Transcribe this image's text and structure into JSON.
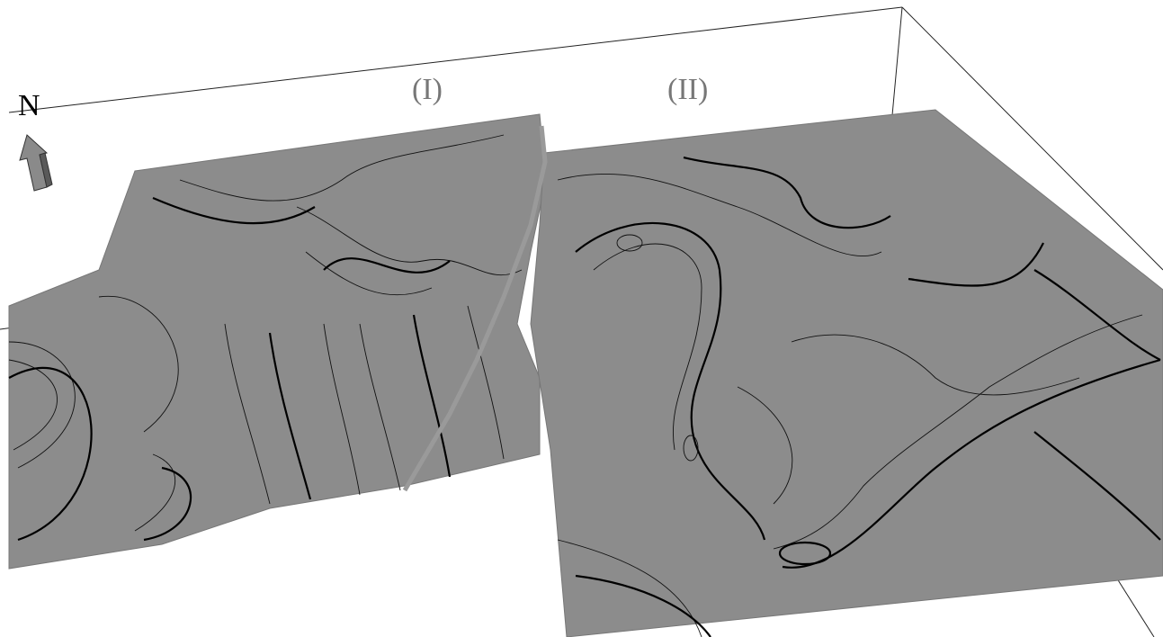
{
  "north_label": "N",
  "regions": [
    {
      "label": "(I)"
    },
    {
      "label": "(II)"
    }
  ]
}
